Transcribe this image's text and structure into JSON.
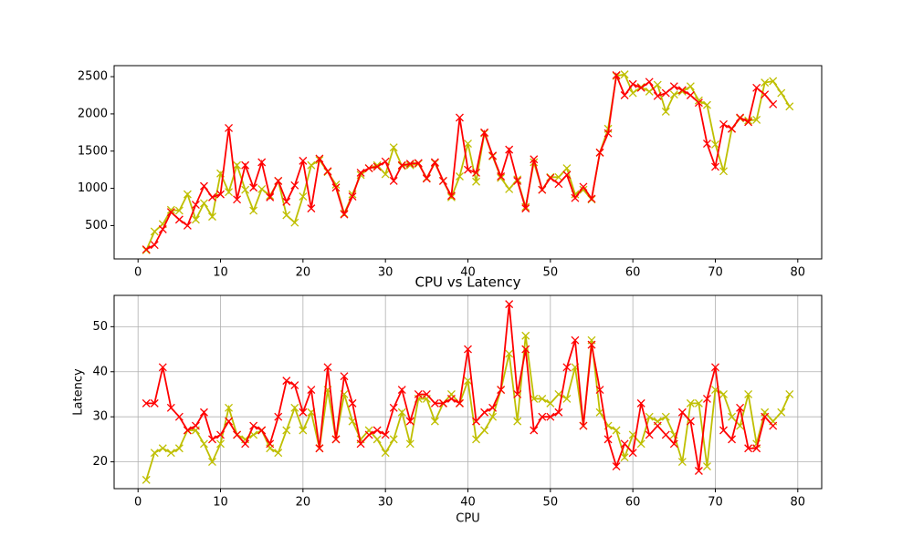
{
  "chart_data": [
    {
      "type": "line",
      "grid": false,
      "marker": "x",
      "xlim": [
        -2.9,
        82.9
      ],
      "xticks": [
        0,
        10,
        20,
        30,
        40,
        50,
        60,
        70,
        80
      ],
      "ylim": [
        52,
        2648
      ],
      "yticks": [
        500,
        1000,
        1500,
        2000,
        2500
      ],
      "series": [
        {
          "color": "#bfbf00",
          "x": [
            1,
            2,
            3,
            4,
            5,
            6,
            7,
            8,
            9,
            10,
            11,
            12,
            13,
            14,
            15,
            16,
            17,
            18,
            19,
            20,
            21,
            22,
            23,
            24,
            25,
            26,
            27,
            28,
            29,
            30,
            31,
            32,
            33,
            34,
            35,
            36,
            37,
            38,
            39,
            40,
            41,
            42,
            43,
            44,
            45,
            46,
            47,
            48,
            49,
            50,
            51,
            52,
            53,
            54,
            55,
            56,
            57,
            58,
            59,
            60,
            61,
            62,
            63,
            64,
            65,
            66,
            67,
            68,
            69,
            70,
            71,
            72,
            73,
            74,
            75,
            76,
            77,
            78,
            79
          ],
          "values": [
            170,
            420,
            520,
            710,
            700,
            920,
            580,
            800,
            620,
            1200,
            950,
            1310,
            980,
            700,
            990,
            900,
            1100,
            640,
            540,
            890,
            1310,
            1380,
            1220,
            1050,
            660,
            920,
            1180,
            1270,
            1310,
            1190,
            1550,
            1300,
            1310,
            1330,
            1140,
            1340,
            1100,
            880,
            1160,
            1600,
            1090,
            1740,
            1430,
            1140,
            990,
            1120,
            750,
            1350,
            980,
            1150,
            1150,
            1270,
            920,
            980,
            850,
            1480,
            1800,
            2510,
            2530,
            2280,
            2360,
            2300,
            2390,
            2030,
            2260,
            2300,
            2370,
            2180,
            2120,
            1590,
            1230,
            1800,
            1940,
            1910,
            1920,
            2420,
            2440,
            2280,
            2100
          ]
        },
        {
          "color": "#ff0000",
          "x": [
            1,
            2,
            3,
            4,
            5,
            6,
            7,
            8,
            9,
            10,
            11,
            12,
            13,
            14,
            15,
            16,
            17,
            18,
            19,
            20,
            21,
            22,
            23,
            24,
            25,
            26,
            27,
            28,
            29,
            30,
            31,
            32,
            33,
            34,
            35,
            36,
            37,
            38,
            39,
            40,
            41,
            42,
            43,
            44,
            45,
            46,
            47,
            48,
            49,
            50,
            51,
            52,
            53,
            54,
            55,
            56,
            57,
            58,
            59,
            60,
            61,
            62,
            63,
            64,
            65,
            66,
            67,
            68,
            69,
            70,
            71,
            72,
            73,
            74,
            75,
            76,
            77
          ],
          "values": [
            180,
            240,
            450,
            680,
            580,
            500,
            780,
            1030,
            880,
            920,
            1810,
            850,
            1310,
            1010,
            1350,
            880,
            1100,
            820,
            1040,
            1370,
            730,
            1400,
            1230,
            1010,
            650,
            890,
            1210,
            1270,
            1290,
            1360,
            1100,
            1310,
            1330,
            1340,
            1130,
            1350,
            1100,
            900,
            1950,
            1250,
            1210,
            1750,
            1440,
            1160,
            1520,
            1100,
            730,
            1390,
            980,
            1140,
            1060,
            1180,
            870,
            1020,
            860,
            1480,
            1740,
            2520,
            2250,
            2400,
            2350,
            2430,
            2240,
            2280,
            2370,
            2320,
            2250,
            2150,
            1600,
            1290,
            1860,
            1800,
            1950,
            1890,
            2350,
            2260,
            2130
          ]
        }
      ]
    },
    {
      "type": "line",
      "grid": true,
      "marker": "x",
      "title": "CPU vs Latency",
      "x_label": "CPU",
      "y_label": "Latency",
      "xlim": [
        -2.9,
        82.9
      ],
      "xticks": [
        0,
        10,
        20,
        30,
        40,
        50,
        60,
        70,
        80
      ],
      "ylim": [
        14.05,
        56.95
      ],
      "yticks": [
        20,
        30,
        40,
        50
      ],
      "series": [
        {
          "color": "#bfbf00",
          "x": [
            1,
            2,
            3,
            4,
            5,
            6,
            7,
            8,
            9,
            10,
            11,
            12,
            13,
            14,
            15,
            16,
            17,
            18,
            19,
            20,
            21,
            22,
            23,
            24,
            25,
            26,
            27,
            28,
            29,
            30,
            31,
            32,
            33,
            34,
            35,
            36,
            37,
            38,
            39,
            40,
            41,
            42,
            43,
            44,
            45,
            46,
            47,
            48,
            49,
            50,
            51,
            52,
            53,
            54,
            55,
            56,
            57,
            58,
            59,
            60,
            61,
            62,
            63,
            64,
            65,
            66,
            67,
            68,
            69,
            70,
            71,
            72,
            73,
            74,
            75,
            76,
            77,
            78,
            79
          ],
          "values": [
            16,
            22,
            23,
            22,
            23,
            27,
            27,
            24,
            20,
            24,
            32,
            26,
            25,
            26,
            27,
            23,
            22,
            27,
            32,
            27,
            31,
            23,
            36,
            25,
            35,
            29,
            25,
            27,
            25,
            22,
            25,
            31,
            24,
            34,
            34,
            29,
            33,
            35,
            33,
            38,
            25,
            27,
            30,
            36,
            44,
            29,
            48,
            34,
            34,
            33,
            35,
            34,
            41,
            28,
            47,
            31,
            28,
            27,
            21,
            26,
            24,
            30,
            29,
            30,
            26,
            20,
            33,
            33,
            19,
            36,
            35,
            30,
            28,
            35,
            24,
            31,
            29,
            31,
            35
          ]
        },
        {
          "color": "#ff0000",
          "x": [
            1,
            2,
            3,
            4,
            5,
            6,
            7,
            8,
            9,
            10,
            11,
            12,
            13,
            14,
            15,
            16,
            17,
            18,
            19,
            20,
            21,
            22,
            23,
            24,
            25,
            26,
            27,
            28,
            29,
            30,
            31,
            32,
            33,
            34,
            35,
            36,
            37,
            38,
            39,
            40,
            41,
            42,
            43,
            44,
            45,
            46,
            47,
            48,
            49,
            50,
            51,
            52,
            53,
            54,
            55,
            56,
            57,
            58,
            59,
            60,
            61,
            62,
            63,
            64,
            65,
            66,
            67,
            68,
            69,
            70,
            71,
            72,
            73,
            74,
            75,
            76,
            77
          ],
          "values": [
            33,
            33,
            41,
            32,
            30,
            27,
            28,
            31,
            25,
            26,
            29,
            26,
            24,
            28,
            27,
            24,
            30,
            38,
            37,
            31,
            36,
            23,
            41,
            25,
            39,
            33,
            24,
            26,
            27,
            26,
            32,
            36,
            29,
            35,
            35,
            33,
            33,
            34,
            33,
            45,
            29,
            31,
            32,
            36,
            55,
            35,
            45,
            27,
            30,
            30,
            31,
            41,
            47,
            28,
            46,
            36,
            25,
            19,
            24,
            22,
            33,
            26,
            28,
            26,
            24,
            31,
            29,
            18,
            34,
            41,
            27,
            25,
            32,
            23,
            23,
            30,
            28
          ]
        }
      ]
    }
  ]
}
